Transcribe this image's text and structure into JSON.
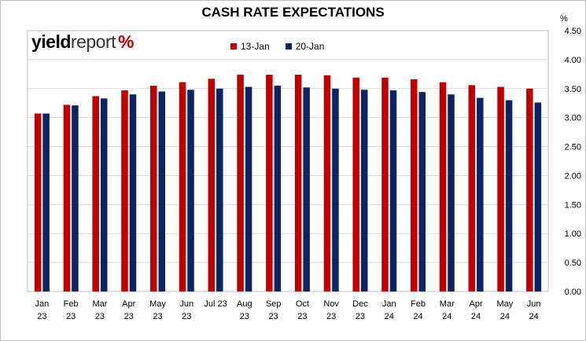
{
  "chart_data": {
    "type": "bar",
    "title": "CASH RATE EXPECTATIONS",
    "unit_label": "%",
    "logo": {
      "part1": "yield",
      "part2": "report",
      "part3": "%"
    },
    "categories": [
      [
        "Jan",
        "23"
      ],
      [
        "Feb",
        "23"
      ],
      [
        "Mar",
        "23"
      ],
      [
        "Apr",
        "23"
      ],
      [
        "May",
        "23"
      ],
      [
        "Jun",
        "23"
      ],
      [
        "Jul 23",
        ""
      ],
      [
        "Aug",
        "23"
      ],
      [
        "Sep",
        "23"
      ],
      [
        "Oct",
        "23"
      ],
      [
        "Nov",
        "23"
      ],
      [
        "Dec",
        "23"
      ],
      [
        "Jan",
        "24"
      ],
      [
        "Feb",
        "24"
      ],
      [
        "Mar",
        "24"
      ],
      [
        "Apr",
        "24"
      ],
      [
        "May",
        "24"
      ],
      [
        "Jun",
        "24"
      ]
    ],
    "series": [
      {
        "name": "13-Jan",
        "color": "#c00000",
        "values": [
          3.07,
          3.22,
          3.37,
          3.47,
          3.55,
          3.61,
          3.67,
          3.74,
          3.74,
          3.74,
          3.73,
          3.69,
          3.69,
          3.66,
          3.61,
          3.56,
          3.53,
          3.5
        ]
      },
      {
        "name": "20-Jan",
        "color": "#0c2461",
        "values": [
          3.07,
          3.21,
          3.33,
          3.4,
          3.45,
          3.48,
          3.5,
          3.53,
          3.55,
          3.52,
          3.5,
          3.48,
          3.47,
          3.44,
          3.4,
          3.34,
          3.3,
          3.26
        ]
      }
    ],
    "ylim": [
      0,
      4.5
    ],
    "yticks": [
      "0.00",
      "0.50",
      "1.00",
      "1.50",
      "2.00",
      "2.50",
      "3.00",
      "3.50",
      "4.00",
      "4.50"
    ],
    "ytick_values": [
      0,
      0.5,
      1.0,
      1.5,
      2.0,
      2.5,
      3.0,
      3.5,
      4.0,
      4.5
    ],
    "grid": true,
    "legend_position": "top"
  }
}
